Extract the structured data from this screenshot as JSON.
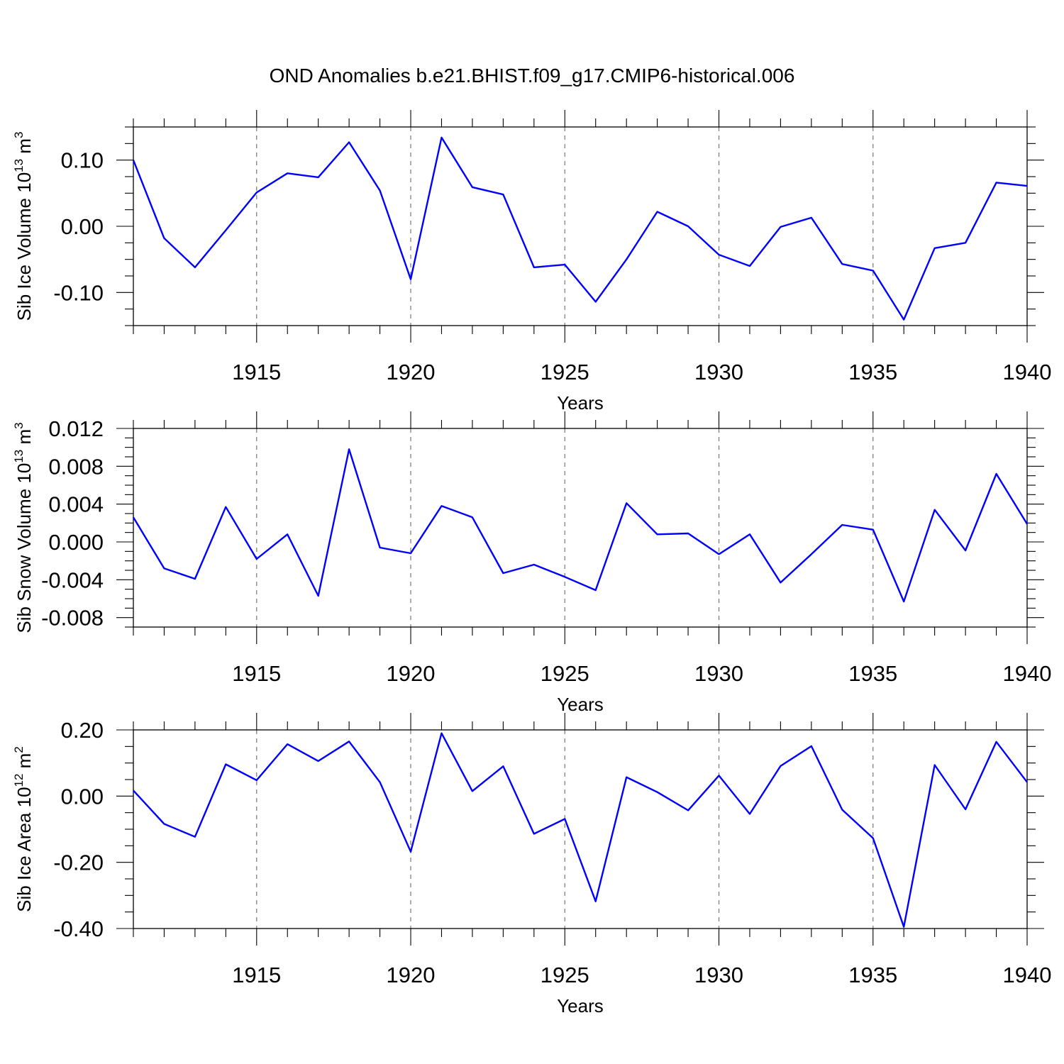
{
  "title": "OND Anomalies b.e21.BHIST.f09_g17.CMIP6-historical.006",
  "colors": {
    "line": "#0000ff",
    "grid": "#777777",
    "axis": "#000000"
  },
  "chart_data": [
    {
      "type": "line",
      "name": "ice-volume",
      "ylabel": "Sib Ice Volume 10",
      "ylabel_exp": "13",
      "ylabel_unit": " m",
      "ylabel_unit_exp": "3",
      "xlabel": "Years",
      "xlim": [
        1911,
        1940
      ],
      "ylim": [
        -0.15,
        0.15
      ],
      "yticks": [
        -0.1,
        0.0,
        0.1
      ],
      "ytick_labels": [
        "-0.10",
        "0.00",
        "0.10"
      ],
      "yminor_step": 0.025,
      "xticks": [
        1915,
        1920,
        1925,
        1930,
        1935,
        1940
      ],
      "xtick_labels": [
        "1915",
        "1920",
        "1925",
        "1930",
        "1935",
        "1940"
      ],
      "x": [
        1911,
        1912,
        1913,
        1914,
        1915,
        1916,
        1917,
        1918,
        1919,
        1920,
        1921,
        1922,
        1923,
        1924,
        1925,
        1926,
        1927,
        1928,
        1929,
        1930,
        1931,
        1932,
        1933,
        1934,
        1935,
        1936,
        1937,
        1938,
        1939,
        1940
      ],
      "values": [
        0.1,
        -0.018,
        -0.062,
        -0.006,
        0.051,
        0.08,
        0.074,
        0.127,
        0.054,
        -0.08,
        0.134,
        0.059,
        0.048,
        -0.062,
        -0.058,
        -0.114,
        -0.05,
        0.022,
        0.0,
        -0.043,
        -0.06,
        -0.001,
        0.013,
        -0.057,
        -0.067,
        -0.141,
        -0.033,
        -0.025,
        0.066,
        0.061
      ]
    },
    {
      "type": "line",
      "name": "snow-volume",
      "ylabel": "Sib Snow Volume 10",
      "ylabel_exp": "13",
      "ylabel_unit": " m",
      "ylabel_unit_exp": "3",
      "xlabel": "Years",
      "xlim": [
        1911,
        1940
      ],
      "ylim": [
        -0.009,
        0.012
      ],
      "yticks": [
        -0.008,
        -0.004,
        0.0,
        0.004,
        0.008,
        0.012
      ],
      "ytick_labels": [
        "-0.008",
        "-0.004",
        "0.000",
        "0.004",
        "0.008",
        "0.012"
      ],
      "yminor_step": 0.001,
      "xticks": [
        1915,
        1920,
        1925,
        1930,
        1935,
        1940
      ],
      "xtick_labels": [
        "1915",
        "1920",
        "1925",
        "1930",
        "1935",
        "1940"
      ],
      "x": [
        1911,
        1912,
        1913,
        1914,
        1915,
        1916,
        1917,
        1918,
        1919,
        1920,
        1921,
        1922,
        1923,
        1924,
        1925,
        1926,
        1927,
        1928,
        1929,
        1930,
        1931,
        1932,
        1933,
        1934,
        1935,
        1936,
        1937,
        1938,
        1939,
        1940
      ],
      "values": [
        0.0026,
        -0.0028,
        -0.0039,
        0.0037,
        -0.0018,
        0.0008,
        -0.0057,
        0.0098,
        -0.0006,
        -0.0012,
        0.0038,
        0.0026,
        -0.0033,
        -0.0024,
        -0.0037,
        -0.0051,
        0.0041,
        0.0008,
        0.0009,
        -0.0013,
        0.0008,
        -0.0043,
        -0.0013,
        0.0018,
        0.0013,
        -0.0063,
        0.0034,
        -0.0009,
        0.0072,
        0.0019
      ]
    },
    {
      "type": "line",
      "name": "ice-area",
      "ylabel": "Sib Ice Area 10",
      "ylabel_exp": "12",
      "ylabel_unit": " m",
      "ylabel_unit_exp": "2",
      "xlabel": "Years",
      "xlim": [
        1911,
        1940
      ],
      "ylim": [
        -0.4,
        0.2
      ],
      "yticks": [
        -0.4,
        -0.2,
        0.0,
        0.2
      ],
      "ytick_labels": [
        "-0.40",
        "-0.20",
        "0.00",
        "0.20"
      ],
      "yminor_step": 0.05,
      "xticks": [
        1915,
        1920,
        1925,
        1930,
        1935,
        1940
      ],
      "xtick_labels": [
        "1915",
        "1920",
        "1925",
        "1930",
        "1935",
        "1940"
      ],
      "x": [
        1911,
        1912,
        1913,
        1914,
        1915,
        1916,
        1917,
        1918,
        1919,
        1920,
        1921,
        1922,
        1923,
        1924,
        1925,
        1926,
        1927,
        1928,
        1929,
        1930,
        1931,
        1932,
        1933,
        1934,
        1935,
        1936,
        1937,
        1938,
        1939,
        1940
      ],
      "values": [
        0.017,
        -0.084,
        -0.123,
        0.096,
        0.048,
        0.157,
        0.106,
        0.165,
        0.042,
        -0.168,
        0.19,
        0.015,
        0.09,
        -0.114,
        -0.069,
        -0.318,
        0.057,
        0.012,
        -0.043,
        0.062,
        -0.054,
        0.091,
        0.151,
        -0.041,
        -0.127,
        -0.395,
        0.094,
        -0.04,
        0.164,
        0.042
      ]
    }
  ]
}
